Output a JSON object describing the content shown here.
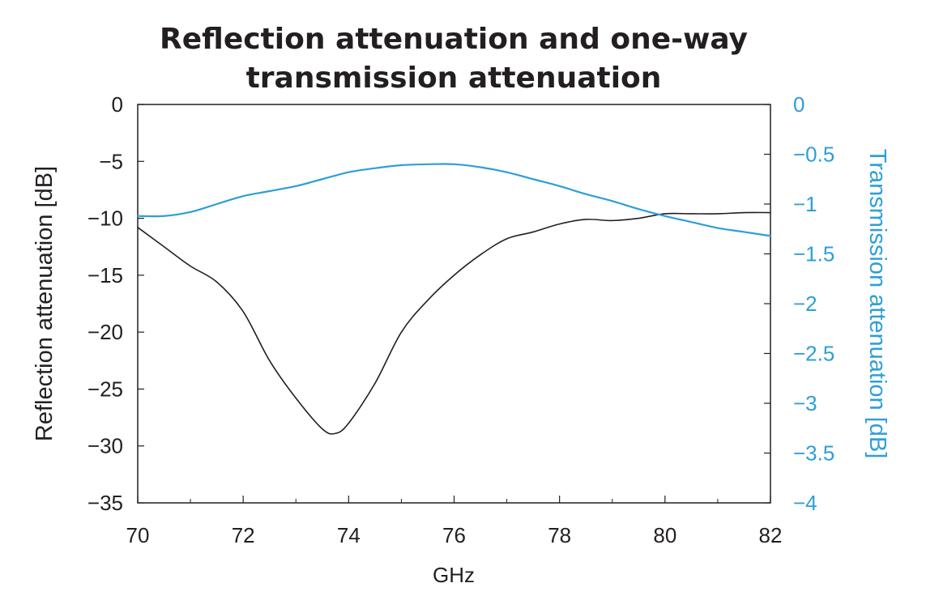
{
  "chart_data": {
    "type": "line",
    "title_lines": [
      "Reflection attenuation and one-way",
      "transmission attenuation"
    ],
    "xlabel": "GHz",
    "ylabel_left": "Reflection attenuation [dB]",
    "ylabel_right": "Transmission attenuation [dB]",
    "xlim": [
      70,
      82
    ],
    "x_ticks": [
      "70",
      "72",
      "74",
      "76",
      "78",
      "80",
      "82"
    ],
    "ylim_left": [
      -35,
      0
    ],
    "y_ticks_left": [
      "0",
      "−5",
      "−10",
      "−15",
      "−20",
      "−25",
      "−30",
      "−35"
    ],
    "ylim_right": [
      -4,
      0
    ],
    "y_ticks_right": [
      "0",
      "−0.5",
      "−1",
      "−1.5",
      "−2",
      "−2.5",
      "−3",
      "−3.5",
      "−4"
    ],
    "grid": false,
    "series": [
      {
        "axis": "left",
        "color": "#231f20",
        "x": [
          70,
          70.5,
          71,
          71.5,
          72,
          72.5,
          73,
          73.5,
          73.75,
          74,
          74.5,
          75,
          75.5,
          76,
          76.5,
          77,
          77.5,
          78,
          78.5,
          79,
          79.5,
          80,
          80.5,
          81,
          81.5,
          82
        ],
        "y": [
          -10.8,
          -12.5,
          -14.2,
          -15.6,
          -18.2,
          -22.5,
          -25.8,
          -28.5,
          -28.9,
          -28,
          -24.5,
          -20,
          -17.2,
          -15,
          -13.2,
          -11.8,
          -11.2,
          -10.5,
          -10.1,
          -10.2,
          -10,
          -9.6,
          -9.6,
          -9.6,
          -9.5,
          -9.5
        ]
      },
      {
        "axis": "right",
        "color": "#2e9fd6",
        "x": [
          70,
          70.5,
          71,
          71.5,
          72,
          72.5,
          73,
          73.5,
          74,
          74.5,
          75,
          75.5,
          76,
          76.5,
          77,
          77.5,
          78,
          78.5,
          79,
          79.5,
          80,
          80.5,
          81,
          81.5,
          82
        ],
        "y": [
          -1.12,
          -1.12,
          -1.08,
          -1.0,
          -0.92,
          -0.87,
          -0.82,
          -0.75,
          -0.68,
          -0.64,
          -0.61,
          -0.6,
          -0.6,
          -0.63,
          -0.68,
          -0.75,
          -0.82,
          -0.9,
          -0.97,
          -1.05,
          -1.12,
          -1.18,
          -1.24,
          -1.28,
          -1.32
        ]
      }
    ]
  }
}
